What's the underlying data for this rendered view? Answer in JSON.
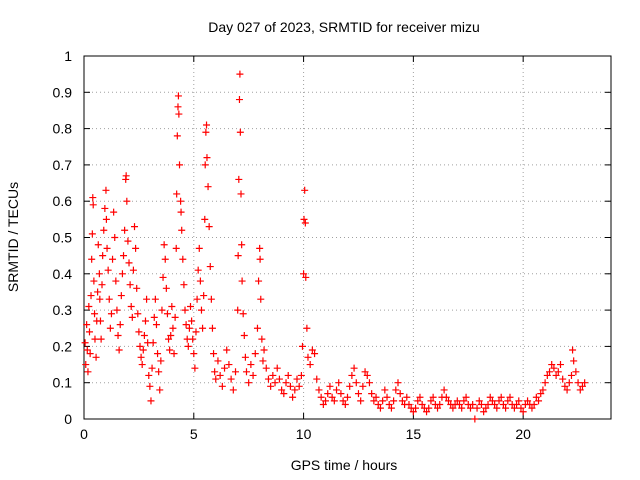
{
  "chart_data": {
    "type": "scatter",
    "title": "Day 027 of 2023, SRMTID for receiver mizu",
    "xlabel": "GPS time / hours",
    "ylabel": "SRMTID / TECUs",
    "xlim": [
      0,
      24
    ],
    "ylim": [
      0,
      1
    ],
    "x_ticks": [
      "0",
      "5",
      "10",
      "15",
      "20"
    ],
    "y_ticks": [
      "0",
      "0.1",
      "0.2",
      "0.3",
      "0.4",
      "0.5",
      "0.6",
      "0.7",
      "0.8",
      "0.9",
      "1"
    ],
    "grid": true,
    "marker": "+",
    "series": [
      {
        "name": "SRMTID",
        "color": "#ff0000",
        "points": [
          [
            0.05,
            0.21
          ],
          [
            0.08,
            0.15
          ],
          [
            0.12,
            0.26
          ],
          [
            0.15,
            0.19
          ],
          [
            0.18,
            0.13
          ],
          [
            0.22,
            0.31
          ],
          [
            0.25,
            0.24
          ],
          [
            0.28,
            0.18
          ],
          [
            0.32,
            0.34
          ],
          [
            0.35,
            0.44
          ],
          [
            0.38,
            0.51
          ],
          [
            0.4,
            0.61
          ],
          [
            0.42,
            0.59
          ],
          [
            0.45,
            0.38
          ],
          [
            0.48,
            0.29
          ],
          [
            0.5,
            0.22
          ],
          [
            0.55,
            0.17
          ],
          [
            0.58,
            0.27
          ],
          [
            0.62,
            0.35
          ],
          [
            0.65,
            0.48
          ],
          [
            0.7,
            0.4
          ],
          [
            0.72,
            0.33
          ],
          [
            0.75,
            0.27
          ],
          [
            0.78,
            0.22
          ],
          [
            0.82,
            0.37
          ],
          [
            0.85,
            0.45
          ],
          [
            0.9,
            0.52
          ],
          [
            0.95,
            0.58
          ],
          [
            1.0,
            0.63
          ],
          [
            1.02,
            0.55
          ],
          [
            1.05,
            0.47
          ],
          [
            1.1,
            0.41
          ],
          [
            1.15,
            0.33
          ],
          [
            1.2,
            0.25
          ],
          [
            1.25,
            0.29
          ],
          [
            1.3,
            0.44
          ],
          [
            1.35,
            0.57
          ],
          [
            1.4,
            0.5
          ],
          [
            1.45,
            0.38
          ],
          [
            1.5,
            0.3
          ],
          [
            1.55,
            0.23
          ],
          [
            1.6,
            0.19
          ],
          [
            1.65,
            0.26
          ],
          [
            1.7,
            0.34
          ],
          [
            1.75,
            0.4
          ],
          [
            1.8,
            0.45
          ],
          [
            1.85,
            0.52
          ],
          [
            1.9,
            0.66
          ],
          [
            1.92,
            0.67
          ],
          [
            1.95,
            0.6
          ],
          [
            2.0,
            0.49
          ],
          [
            2.05,
            0.43
          ],
          [
            2.1,
            0.37
          ],
          [
            2.15,
            0.31
          ],
          [
            2.2,
            0.28
          ],
          [
            2.25,
            0.41
          ],
          [
            2.3,
            0.53
          ],
          [
            2.35,
            0.47
          ],
          [
            2.4,
            0.36
          ],
          [
            2.45,
            0.29
          ],
          [
            2.5,
            0.24
          ],
          [
            2.55,
            0.2
          ],
          [
            2.6,
            0.17
          ],
          [
            2.65,
            0.15
          ],
          [
            2.7,
            0.19
          ],
          [
            2.75,
            0.23
          ],
          [
            2.8,
            0.27
          ],
          [
            2.85,
            0.33
          ],
          [
            2.9,
            0.21
          ],
          [
            2.95,
            0.12
          ],
          [
            3.0,
            0.09
          ],
          [
            3.05,
            0.05
          ],
          [
            3.1,
            0.14
          ],
          [
            3.15,
            0.21
          ],
          [
            3.2,
            0.28
          ],
          [
            3.25,
            0.33
          ],
          [
            3.3,
            0.26
          ],
          [
            3.35,
            0.18
          ],
          [
            3.4,
            0.13
          ],
          [
            3.45,
            0.08
          ],
          [
            3.5,
            0.16
          ],
          [
            3.55,
            0.3
          ],
          [
            3.6,
            0.39
          ],
          [
            3.65,
            0.48
          ],
          [
            3.7,
            0.44
          ],
          [
            3.75,
            0.36
          ],
          [
            3.8,
            0.29
          ],
          [
            3.85,
            0.22
          ],
          [
            3.9,
            0.19
          ],
          [
            3.95,
            0.23
          ],
          [
            4.0,
            0.31
          ],
          [
            4.05,
            0.25
          ],
          [
            4.1,
            0.18
          ],
          [
            4.15,
            0.28
          ],
          [
            4.2,
            0.47
          ],
          [
            4.22,
            0.62
          ],
          [
            4.25,
            0.78
          ],
          [
            4.28,
            0.86
          ],
          [
            4.3,
            0.89
          ],
          [
            4.32,
            0.84
          ],
          [
            4.35,
            0.7
          ],
          [
            4.4,
            0.6
          ],
          [
            4.42,
            0.57
          ],
          [
            4.45,
            0.52
          ],
          [
            4.5,
            0.44
          ],
          [
            4.55,
            0.37
          ],
          [
            4.6,
            0.3
          ],
          [
            4.65,
            0.26
          ],
          [
            4.7,
            0.22
          ],
          [
            4.75,
            0.2
          ],
          [
            4.8,
            0.25
          ],
          [
            4.85,
            0.31
          ],
          [
            4.9,
            0.27
          ],
          [
            4.95,
            0.22
          ],
          [
            5.0,
            0.18
          ],
          [
            5.05,
            0.14
          ],
          [
            5.1,
            0.24
          ],
          [
            5.15,
            0.33
          ],
          [
            5.2,
            0.41
          ],
          [
            5.25,
            0.47
          ],
          [
            5.3,
            0.38
          ],
          [
            5.35,
            0.3
          ],
          [
            5.4,
            0.25
          ],
          [
            5.45,
            0.34
          ],
          [
            5.5,
            0.55
          ],
          [
            5.52,
            0.7
          ],
          [
            5.55,
            0.79
          ],
          [
            5.58,
            0.81
          ],
          [
            5.6,
            0.72
          ],
          [
            5.65,
            0.64
          ],
          [
            5.7,
            0.53
          ],
          [
            5.75,
            0.42
          ],
          [
            5.8,
            0.33
          ],
          [
            5.85,
            0.25
          ],
          [
            5.9,
            0.18
          ],
          [
            5.95,
            0.13
          ],
          [
            6.0,
            0.11
          ],
          [
            6.1,
            0.16
          ],
          [
            6.2,
            0.12
          ],
          [
            6.3,
            0.09
          ],
          [
            6.4,
            0.14
          ],
          [
            6.5,
            0.19
          ],
          [
            6.6,
            0.15
          ],
          [
            6.7,
            0.11
          ],
          [
            6.8,
            0.08
          ],
          [
            6.9,
            0.13
          ],
          [
            7.0,
            0.3
          ],
          [
            7.02,
            0.45
          ],
          [
            7.05,
            0.66
          ],
          [
            7.08,
            0.88
          ],
          [
            7.1,
            0.95
          ],
          [
            7.12,
            0.79
          ],
          [
            7.15,
            0.62
          ],
          [
            7.18,
            0.48
          ],
          [
            7.2,
            0.38
          ],
          [
            7.25,
            0.29
          ],
          [
            7.3,
            0.23
          ],
          [
            7.35,
            0.17
          ],
          [
            7.4,
            0.13
          ],
          [
            7.5,
            0.1
          ],
          [
            7.6,
            0.15
          ],
          [
            7.7,
            0.12
          ],
          [
            7.8,
            0.18
          ],
          [
            7.9,
            0.25
          ],
          [
            7.95,
            0.38
          ],
          [
            8.0,
            0.47
          ],
          [
            8.02,
            0.44
          ],
          [
            8.05,
            0.33
          ],
          [
            8.1,
            0.22
          ],
          [
            8.15,
            0.16
          ],
          [
            8.2,
            0.19
          ],
          [
            8.3,
            0.14
          ],
          [
            8.4,
            0.11
          ],
          [
            8.5,
            0.09
          ],
          [
            8.6,
            0.12
          ],
          [
            8.7,
            0.1
          ],
          [
            8.8,
            0.14
          ],
          [
            8.9,
            0.11
          ],
          [
            9.0,
            0.08
          ],
          [
            9.1,
            0.07
          ],
          [
            9.2,
            0.1
          ],
          [
            9.3,
            0.12
          ],
          [
            9.4,
            0.09
          ],
          [
            9.5,
            0.06
          ],
          [
            9.6,
            0.08
          ],
          [
            9.7,
            0.11
          ],
          [
            9.8,
            0.09
          ],
          [
            9.9,
            0.12
          ],
          [
            9.95,
            0.2
          ],
          [
            10.0,
            0.4
          ],
          [
            10.02,
            0.55
          ],
          [
            10.05,
            0.63
          ],
          [
            10.08,
            0.54
          ],
          [
            10.1,
            0.39
          ],
          [
            10.15,
            0.25
          ],
          [
            10.2,
            0.17
          ],
          [
            10.3,
            0.15
          ],
          [
            10.4,
            0.19
          ],
          [
            10.5,
            0.18
          ],
          [
            10.6,
            0.11
          ],
          [
            10.7,
            0.08
          ],
          [
            10.8,
            0.06
          ],
          [
            10.9,
            0.04
          ],
          [
            11.0,
            0.05
          ],
          [
            11.1,
            0.07
          ],
          [
            11.2,
            0.09
          ],
          [
            11.3,
            0.06
          ],
          [
            11.4,
            0.05
          ],
          [
            11.5,
            0.08
          ],
          [
            11.6,
            0.1
          ],
          [
            11.7,
            0.07
          ],
          [
            11.8,
            0.05
          ],
          [
            11.9,
            0.04
          ],
          [
            12.0,
            0.06
          ],
          [
            12.1,
            0.09
          ],
          [
            12.2,
            0.12
          ],
          [
            12.3,
            0.14
          ],
          [
            12.4,
            0.1
          ],
          [
            12.5,
            0.07
          ],
          [
            12.6,
            0.05
          ],
          [
            12.7,
            0.09
          ],
          [
            12.8,
            0.13
          ],
          [
            12.9,
            0.12
          ],
          [
            13.0,
            0.1
          ],
          [
            13.1,
            0.07
          ],
          [
            13.2,
            0.05
          ],
          [
            13.3,
            0.06
          ],
          [
            13.4,
            0.04
          ],
          [
            13.5,
            0.03
          ],
          [
            13.6,
            0.05
          ],
          [
            13.7,
            0.08
          ],
          [
            13.8,
            0.06
          ],
          [
            13.9,
            0.04
          ],
          [
            14.0,
            0.03
          ],
          [
            14.1,
            0.05
          ],
          [
            14.2,
            0.08
          ],
          [
            14.3,
            0.1
          ],
          [
            14.4,
            0.07
          ],
          [
            14.5,
            0.05
          ],
          [
            14.6,
            0.04
          ],
          [
            14.7,
            0.06
          ],
          [
            14.8,
            0.04
          ],
          [
            14.9,
            0.03
          ],
          [
            15.0,
            0.02
          ],
          [
            15.1,
            0.03
          ],
          [
            15.2,
            0.05
          ],
          [
            15.3,
            0.06
          ],
          [
            15.4,
            0.04
          ],
          [
            15.5,
            0.03
          ],
          [
            15.6,
            0.02
          ],
          [
            15.7,
            0.03
          ],
          [
            15.8,
            0.05
          ],
          [
            15.9,
            0.06
          ],
          [
            16.0,
            0.04
          ],
          [
            16.1,
            0.03
          ],
          [
            16.2,
            0.04
          ],
          [
            16.3,
            0.06
          ],
          [
            16.4,
            0.08
          ],
          [
            16.5,
            0.06
          ],
          [
            16.6,
            0.05
          ],
          [
            16.7,
            0.04
          ],
          [
            16.8,
            0.03
          ],
          [
            16.9,
            0.04
          ],
          [
            17.0,
            0.05
          ],
          [
            17.1,
            0.04
          ],
          [
            17.2,
            0.03
          ],
          [
            17.3,
            0.05
          ],
          [
            17.4,
            0.06
          ],
          [
            17.5,
            0.04
          ],
          [
            17.6,
            0.03
          ],
          [
            17.7,
            0.04
          ],
          [
            17.8,
            0.0
          ],
          [
            17.9,
            0.03
          ],
          [
            18.0,
            0.05
          ],
          [
            18.1,
            0.04
          ],
          [
            18.2,
            0.02
          ],
          [
            18.3,
            0.03
          ],
          [
            18.4,
            0.04
          ],
          [
            18.5,
            0.06
          ],
          [
            18.6,
            0.05
          ],
          [
            18.7,
            0.04
          ],
          [
            18.8,
            0.03
          ],
          [
            18.9,
            0.05
          ],
          [
            19.0,
            0.06
          ],
          [
            19.1,
            0.04
          ],
          [
            19.2,
            0.03
          ],
          [
            19.3,
            0.05
          ],
          [
            19.4,
            0.06
          ],
          [
            19.5,
            0.04
          ],
          [
            19.6,
            0.03
          ],
          [
            19.7,
            0.04
          ],
          [
            19.8,
            0.05
          ],
          [
            19.9,
            0.03
          ],
          [
            20.0,
            0.02
          ],
          [
            20.1,
            0.04
          ],
          [
            20.2,
            0.05
          ],
          [
            20.3,
            0.04
          ],
          [
            20.4,
            0.03
          ],
          [
            20.5,
            0.04
          ],
          [
            20.6,
            0.06
          ],
          [
            20.7,
            0.05
          ],
          [
            20.8,
            0.07
          ],
          [
            20.9,
            0.08
          ],
          [
            21.0,
            0.1
          ],
          [
            21.1,
            0.12
          ],
          [
            21.2,
            0.13
          ],
          [
            21.3,
            0.15
          ],
          [
            21.4,
            0.14
          ],
          [
            21.5,
            0.12
          ],
          [
            21.6,
            0.13
          ],
          [
            21.7,
            0.15
          ],
          [
            21.8,
            0.11
          ],
          [
            21.9,
            0.09
          ],
          [
            22.0,
            0.08
          ],
          [
            22.1,
            0.1
          ],
          [
            22.2,
            0.12
          ],
          [
            22.25,
            0.19
          ],
          [
            22.3,
            0.16
          ],
          [
            22.4,
            0.13
          ],
          [
            22.5,
            0.1
          ],
          [
            22.6,
            0.08
          ],
          [
            22.7,
            0.09
          ],
          [
            22.8,
            0.1
          ]
        ]
      }
    ]
  }
}
